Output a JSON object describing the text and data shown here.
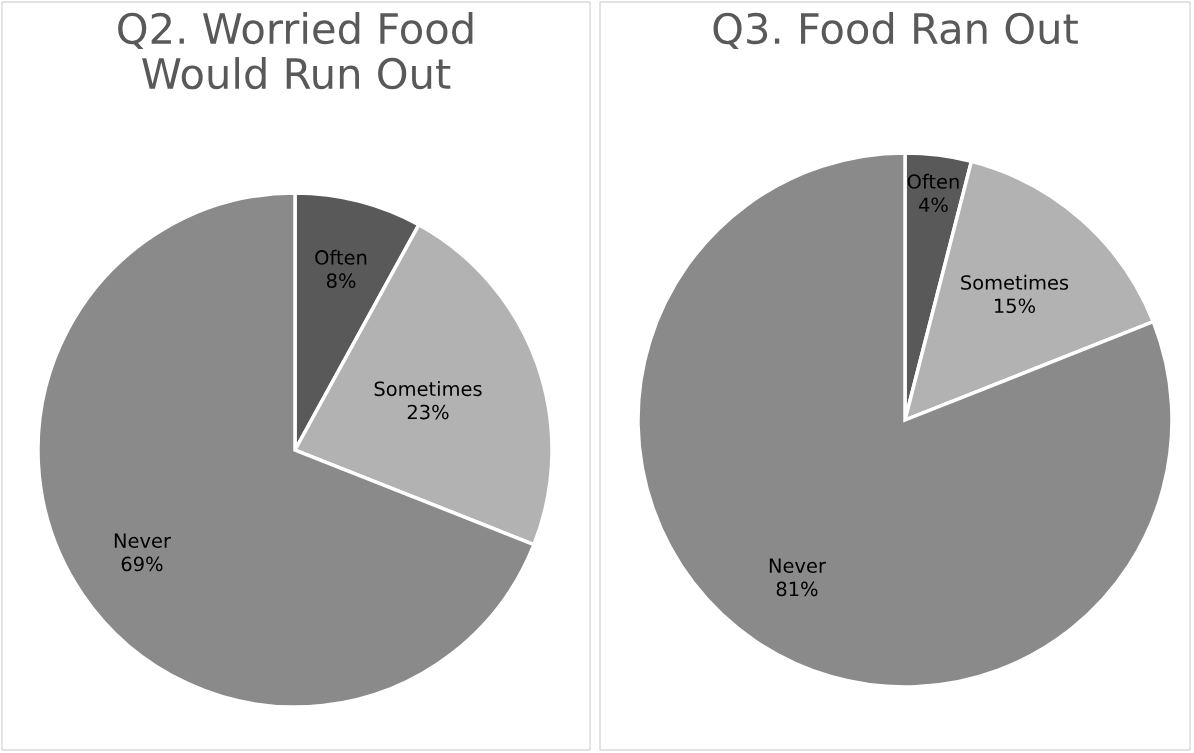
{
  "chart_data": [
    {
      "type": "pie",
      "title": "Q2. Worried Food\nWould Run Out",
      "categories": [
        "Often",
        "Sometimes",
        "Never"
      ],
      "values": [
        8,
        23,
        69
      ],
      "colors": [
        "#595959",
        "#b2b2b2",
        "#8a8a8a"
      ],
      "value_labels": [
        "8%",
        "23%",
        "69%"
      ]
    },
    {
      "type": "pie",
      "title": "Q3. Food Ran Out",
      "categories": [
        "Often",
        "Sometimes",
        "Never"
      ],
      "values": [
        4,
        15,
        81
      ],
      "colors": [
        "#595959",
        "#b2b2b2",
        "#8a8a8a"
      ],
      "value_labels": [
        "4%",
        "15%",
        "81%"
      ]
    }
  ]
}
